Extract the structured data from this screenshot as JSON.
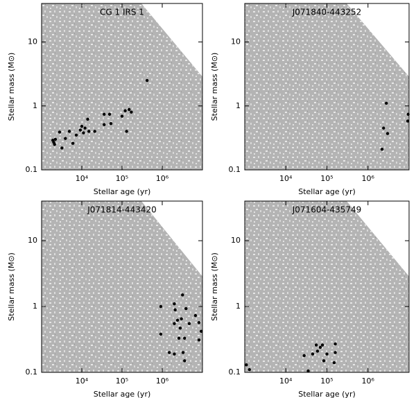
{
  "chart_data": [
    {
      "type": "scatter",
      "title": "CG 1 IRS 1",
      "x_label": "Stellar age (yr)",
      "y_label": "Stellar mass (M⊙)",
      "x_scale": "log",
      "y_scale": "log",
      "color": "#000000",
      "region_color": "#b4b4b4",
      "xlim": [
        1000,
        10000000
      ],
      "ylim": [
        0.1,
        40
      ],
      "xticks": [
        {
          "value": 10000,
          "label": "10⁴"
        },
        {
          "value": 100000,
          "label": "10⁵"
        },
        {
          "value": 1000000,
          "label": "10⁶"
        }
      ],
      "yticks": [
        0.1,
        1,
        10
      ],
      "x": [
        1900,
        2000,
        2200,
        2100,
        2800,
        3200,
        3900,
        4900,
        6000,
        7300,
        9200,
        10000,
        11000,
        14000,
        12000,
        15000,
        21000,
        36000,
        49000,
        53000,
        36000,
        100000,
        120000,
        150000,
        170000,
        130000,
        420000
      ],
      "values": [
        0.29,
        0.27,
        0.3,
        0.25,
        0.39,
        0.22,
        0.31,
        0.4,
        0.26,
        0.35,
        0.42,
        0.48,
        0.38,
        0.62,
        0.45,
        0.4,
        0.4,
        0.74,
        0.74,
        0.53,
        0.51,
        0.69,
        0.84,
        0.88,
        0.8,
        0.4,
        2.5
      ]
    },
    {
      "type": "scatter",
      "title": "J071840-443252",
      "x_label": "Stellar age (yr)",
      "y_label": "Stellar mass (M⊙)",
      "x_scale": "log",
      "y_scale": "log",
      "color": "#000000",
      "region_color": "#b4b4b4",
      "xlim": [
        1000,
        10000000
      ],
      "ylim": [
        0.1,
        40
      ],
      "xticks": [
        {
          "value": 10000,
          "label": "10⁴"
        },
        {
          "value": 100000,
          "label": "10⁵"
        },
        {
          "value": 1000000,
          "label": "10⁶"
        }
      ],
      "yticks": [
        0.1,
        1,
        10
      ],
      "x": [
        2800000,
        2400000,
        3000000,
        2200000,
        9500000,
        9300000
      ],
      "values": [
        1.1,
        0.45,
        0.37,
        0.21,
        0.74,
        0.58
      ]
    },
    {
      "type": "scatter",
      "title": "J071814-443420",
      "x_label": "Stellar age (yr)",
      "y_label": "Stellar mass (M⊙)",
      "x_scale": "log",
      "y_scale": "log",
      "color": "#000000",
      "region_color": "#b4b4b4",
      "xlim": [
        1000,
        10000000
      ],
      "ylim": [
        0.1,
        40
      ],
      "xticks": [
        {
          "value": 10000,
          "label": "10⁴"
        },
        {
          "value": 100000,
          "label": "10⁵"
        },
        {
          "value": 1000000,
          "label": "10⁶"
        }
      ],
      "yticks": [
        0.1,
        1,
        10
      ],
      "x": [
        920000,
        920000,
        2000000,
        2100000,
        2000000,
        2400000,
        2600000,
        2800000,
        3000000,
        3200000,
        3300000,
        3600000,
        3600000,
        3900000,
        4700000,
        6700000,
        8200000,
        8200000,
        9300000,
        1500000,
        2000000
      ],
      "values": [
        1.0,
        0.38,
        1.1,
        0.89,
        0.55,
        0.62,
        0.33,
        0.47,
        0.65,
        1.5,
        0.2,
        0.33,
        0.15,
        0.93,
        0.55,
        0.73,
        0.57,
        0.31,
        0.42,
        0.2,
        0.19
      ]
    },
    {
      "type": "scatter",
      "title": "J071604-435749",
      "x_label": "Stellar age (yr)",
      "y_label": "Stellar mass (M⊙)",
      "x_scale": "log",
      "y_scale": "log",
      "color": "#000000",
      "region_color": "#b4b4b4",
      "xlim": [
        1000,
        10000000
      ],
      "ylim": [
        0.1,
        40
      ],
      "xticks": [
        {
          "value": 10000,
          "label": "10⁴"
        },
        {
          "value": 100000,
          "label": "10⁵"
        },
        {
          "value": 1000000,
          "label": "10⁶"
        }
      ],
      "yticks": [
        0.1,
        1,
        10
      ],
      "x": [
        1100,
        1300,
        28000,
        35000,
        45000,
        55000,
        59000,
        69000,
        84000,
        100000,
        150000,
        160000,
        160000,
        78000
      ],
      "values": [
        0.13,
        0.11,
        0.18,
        0.105,
        0.19,
        0.26,
        0.21,
        0.24,
        0.15,
        0.19,
        0.14,
        0.27,
        0.2,
        0.26
      ]
    }
  ]
}
